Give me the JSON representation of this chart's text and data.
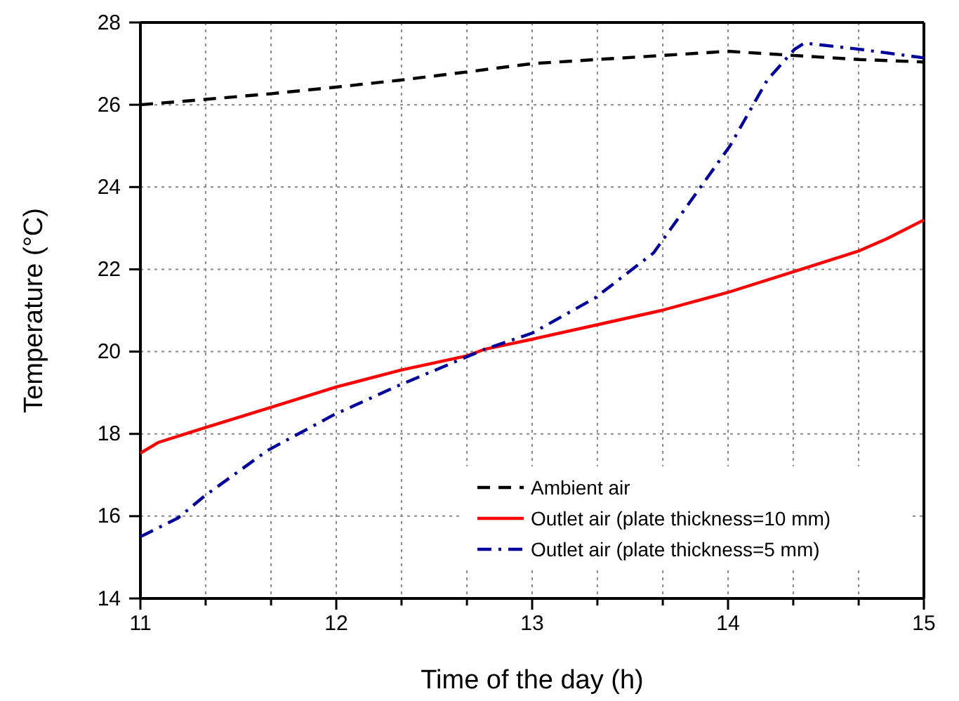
{
  "chart_data": {
    "type": "line",
    "xlabel": "Time of the day (h)",
    "ylabel": "Temperature (°C)",
    "xlim": [
      11,
      15
    ],
    "ylim": [
      14,
      28
    ],
    "xticks": [
      11,
      {
        "value": 11.333,
        "label": null
      },
      {
        "value": 11.667,
        "label": null
      },
      12,
      {
        "value": 12.333,
        "label": null
      },
      {
        "value": 12.667,
        "label": null
      },
      13,
      {
        "value": 13.333,
        "label": null
      },
      {
        "value": 13.667,
        "label": null
      },
      14,
      {
        "value": 14.333,
        "label": null
      },
      {
        "value": 14.667,
        "label": null
      },
      15
    ],
    "yticks": [
      14,
      16,
      18,
      20,
      22,
      24,
      26,
      28
    ],
    "grid": true,
    "legend": "bottom right",
    "series": [
      {
        "name": "Ambient air",
        "color": "#000000",
        "line_style": "dashed",
        "x": [
          11,
          11.33,
          11.67,
          12,
          12.33,
          12.67,
          13,
          13.33,
          13.67,
          14,
          14.33,
          14.67,
          15
        ],
        "values": [
          26.0,
          26.13,
          26.27,
          26.43,
          26.6,
          26.8,
          27.0,
          27.1,
          27.2,
          27.3,
          27.2,
          27.1,
          27.04
        ]
      },
      {
        "name": "Outlet air (plate thickness=10 mm)",
        "color": "#ff0000",
        "line_style": "solid",
        "x": [
          11,
          11.09,
          11.33,
          11.67,
          12,
          12.33,
          12.67,
          12.76,
          13,
          13.33,
          13.66,
          14,
          14.34,
          14.67,
          14.81,
          15
        ],
        "values": [
          17.53,
          17.79,
          18.15,
          18.65,
          19.14,
          19.55,
          19.9,
          20.06,
          20.3,
          20.65,
          21.0,
          21.44,
          21.95,
          22.45,
          22.74,
          23.2
        ]
      },
      {
        "name": "Outlet air (plate thickness=5 mm)",
        "color": "#00009f",
        "line_style": "dashdot",
        "x": [
          11,
          11.19,
          11.33,
          11.65,
          11.99,
          12.33,
          12.76,
          13.0,
          13.32,
          13.62,
          14.01,
          14.2,
          14.34,
          14.39,
          14.67,
          15
        ],
        "values": [
          15.5,
          15.95,
          16.5,
          17.6,
          18.47,
          19.2,
          20.06,
          20.45,
          21.3,
          22.4,
          25.0,
          26.6,
          27.35,
          27.5,
          27.35,
          27.14
        ]
      }
    ]
  }
}
